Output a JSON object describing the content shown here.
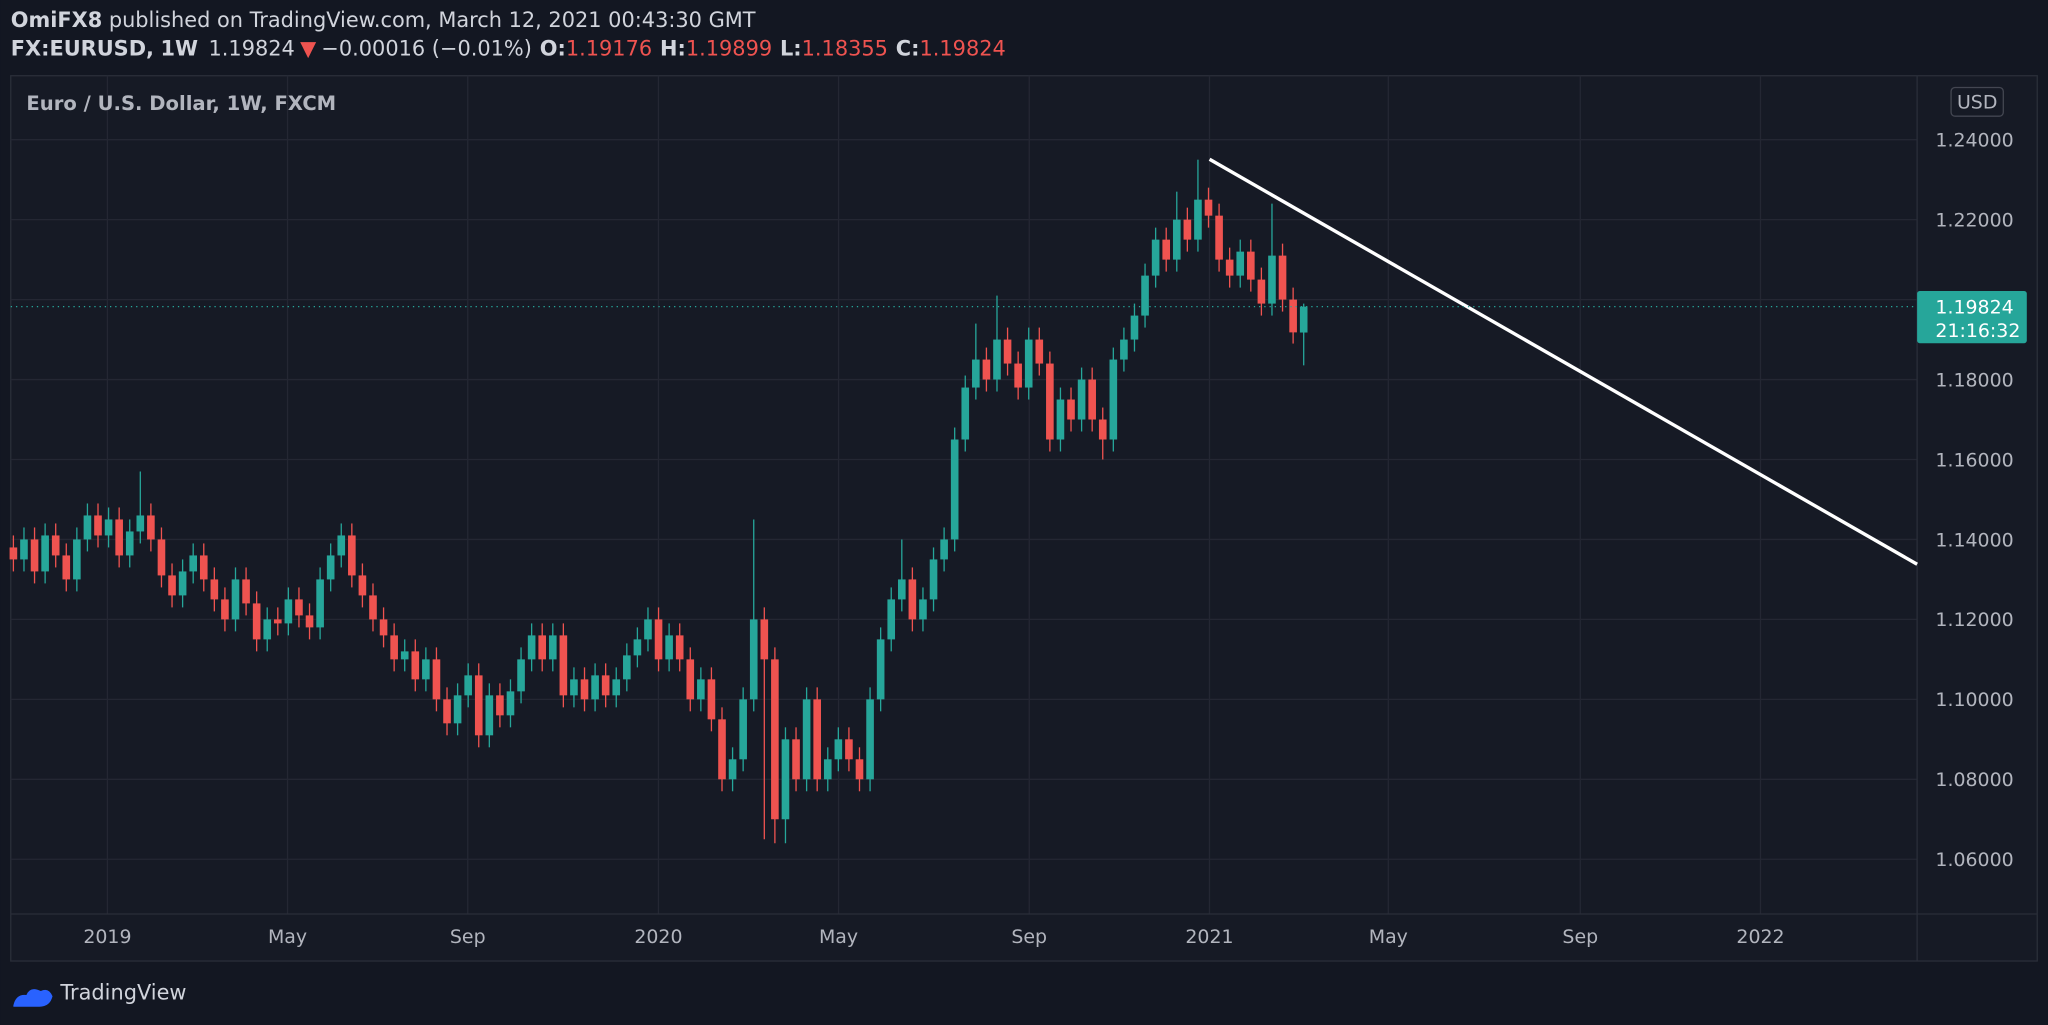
{
  "header": {
    "publisher": "OmiFX8",
    "published": "published on TradingView.com, March 12, 2021 00:43:30 GMT",
    "symbol": "FX:EURUSD,",
    "interval": "1W",
    "change": "−0.00016 (−0.01%)",
    "ohlc_labels": [
      "O:",
      "H:",
      "L:",
      "C:"
    ]
  },
  "chart_data": {
    "type": "candlestick",
    "title": "Euro / U.S. Dollar, 1W, FXCM",
    "currency": "USD",
    "countdown": "21:16:32",
    "up_color": "#26a69a",
    "down_color": "#ef5350",
    "grid": true,
    "xlim": [
      -0.25,
      180
    ],
    "ylim": [
      1.0463,
      1.256
    ],
    "xticks": [
      {
        "value": 8.89,
        "label": "2019"
      },
      {
        "value": 25.92,
        "label": "May"
      },
      {
        "value": 42.96,
        "label": "Sep"
      },
      {
        "value": 60.99,
        "label": "2020"
      },
      {
        "value": 78.02,
        "label": "May"
      },
      {
        "value": 96.05,
        "label": "Sep"
      },
      {
        "value": 113.09,
        "label": "2021"
      },
      {
        "value": 130.0,
        "label": "May"
      },
      {
        "value": 148.15,
        "label": "Sep"
      },
      {
        "value": 165.19,
        "label": "2022"
      }
    ],
    "yticks": [
      {
        "value": 1.06,
        "label": "1.06000"
      },
      {
        "value": 1.08,
        "label": "1.08000"
      },
      {
        "value": 1.1,
        "label": "1.10000"
      },
      {
        "value": 1.12,
        "label": "1.12000"
      },
      {
        "value": 1.14,
        "label": "1.14000"
      },
      {
        "value": 1.16,
        "label": "1.16000"
      },
      {
        "value": 1.18,
        "label": "1.18000"
      },
      {
        "value": 1.2,
        "label": "1.20000"
      },
      {
        "value": 1.22,
        "label": "1.22000"
      },
      {
        "value": 1.24,
        "label": "1.24000"
      }
    ],
    "open": [
      1.138,
      1.135,
      1.14,
      1.132,
      1.141,
      1.136,
      1.13,
      1.14,
      1.146,
      1.141,
      1.145,
      1.136,
      1.142,
      1.146,
      1.14,
      1.131,
      1.126,
      1.132,
      1.136,
      1.13,
      1.125,
      1.12,
      1.13,
      1.124,
      1.115,
      1.12,
      1.119,
      1.125,
      1.121,
      1.118,
      1.13,
      1.136,
      1.141,
      1.131,
      1.126,
      1.12,
      1.116,
      1.11,
      1.112,
      1.105,
      1.11,
      1.1,
      1.094,
      1.101,
      1.106,
      1.091,
      1.101,
      1.096,
      1.102,
      1.11,
      1.116,
      1.11,
      1.116,
      1.101,
      1.105,
      1.1,
      1.106,
      1.101,
      1.105,
      1.111,
      1.115,
      1.12,
      1.11,
      1.116,
      1.11,
      1.1,
      1.105,
      1.095,
      1.08,
      1.085,
      1.1,
      1.12,
      1.11,
      1.07,
      1.09,
      1.08,
      1.1,
      1.08,
      1.085,
      1.09,
      1.085,
      1.08,
      1.1,
      1.115,
      1.125,
      1.13,
      1.12,
      1.125,
      1.135,
      1.14,
      1.165,
      1.178,
      1.185,
      1.18,
      1.19,
      1.184,
      1.178,
      1.19,
      1.184,
      1.165,
      1.175,
      1.17,
      1.18,
      1.17,
      1.165,
      1.185,
      1.19,
      1.196,
      1.206,
      1.215,
      1.21,
      1.22,
      1.215,
      1.225,
      1.221,
      1.21,
      1.206,
      1.212,
      1.205,
      1.199,
      1.211,
      1.2,
      1.19176
    ],
    "high": [
      1.141,
      1.143,
      1.143,
      1.144,
      1.144,
      1.139,
      1.143,
      1.149,
      1.149,
      1.148,
      1.148,
      1.145,
      1.157,
      1.149,
      1.143,
      1.134,
      1.135,
      1.139,
      1.139,
      1.133,
      1.128,
      1.133,
      1.133,
      1.127,
      1.123,
      1.123,
      1.128,
      1.128,
      1.124,
      1.133,
      1.139,
      1.144,
      1.144,
      1.134,
      1.129,
      1.123,
      1.119,
      1.115,
      1.115,
      1.113,
      1.113,
      1.103,
      1.104,
      1.109,
      1.109,
      1.104,
      1.104,
      1.105,
      1.113,
      1.119,
      1.119,
      1.119,
      1.119,
      1.108,
      1.108,
      1.109,
      1.109,
      1.108,
      1.114,
      1.118,
      1.123,
      1.123,
      1.119,
      1.119,
      1.113,
      1.108,
      1.108,
      1.098,
      1.088,
      1.103,
      1.145,
      1.123,
      1.113,
      1.093,
      1.093,
      1.103,
      1.103,
      1.088,
      1.093,
      1.093,
      1.088,
      1.103,
      1.118,
      1.128,
      1.14,
      1.133,
      1.128,
      1.138,
      1.143,
      1.168,
      1.181,
      1.194,
      1.188,
      1.201,
      1.193,
      1.187,
      1.193,
      1.193,
      1.187,
      1.178,
      1.178,
      1.183,
      1.183,
      1.173,
      1.188,
      1.193,
      1.199,
      1.209,
      1.218,
      1.218,
      1.227,
      1.223,
      1.235,
      1.228,
      1.224,
      1.213,
      1.215,
      1.215,
      1.208,
      1.224,
      1.214,
      1.203,
      1.19899
    ],
    "low": [
      1.132,
      1.132,
      1.129,
      1.129,
      1.133,
      1.127,
      1.127,
      1.137,
      1.138,
      1.138,
      1.133,
      1.133,
      1.139,
      1.137,
      1.128,
      1.123,
      1.123,
      1.129,
      1.127,
      1.122,
      1.117,
      1.117,
      1.121,
      1.112,
      1.112,
      1.116,
      1.116,
      1.118,
      1.115,
      1.115,
      1.127,
      1.133,
      1.128,
      1.123,
      1.117,
      1.113,
      1.107,
      1.107,
      1.102,
      1.102,
      1.097,
      1.091,
      1.091,
      1.098,
      1.088,
      1.088,
      1.093,
      1.093,
      1.099,
      1.107,
      1.107,
      1.107,
      1.098,
      1.098,
      1.097,
      1.097,
      1.098,
      1.098,
      1.102,
      1.108,
      1.112,
      1.107,
      1.107,
      1.107,
      1.097,
      1.097,
      1.092,
      1.077,
      1.077,
      1.082,
      1.097,
      1.065,
      1.064,
      1.064,
      1.077,
      1.077,
      1.077,
      1.077,
      1.082,
      1.082,
      1.077,
      1.077,
      1.097,
      1.112,
      1.122,
      1.117,
      1.117,
      1.122,
      1.132,
      1.137,
      1.162,
      1.175,
      1.177,
      1.177,
      1.181,
      1.175,
      1.175,
      1.181,
      1.162,
      1.162,
      1.167,
      1.167,
      1.167,
      1.16,
      1.162,
      1.182,
      1.187,
      1.193,
      1.203,
      1.207,
      1.207,
      1.212,
      1.212,
      1.218,
      1.207,
      1.203,
      1.203,
      1.202,
      1.196,
      1.196,
      1.197,
      1.189,
      1.18355
    ],
    "close": [
      1.135,
      1.14,
      1.132,
      1.141,
      1.136,
      1.13,
      1.14,
      1.146,
      1.141,
      1.145,
      1.136,
      1.142,
      1.146,
      1.14,
      1.131,
      1.126,
      1.132,
      1.136,
      1.13,
      1.125,
      1.12,
      1.13,
      1.124,
      1.115,
      1.12,
      1.119,
      1.125,
      1.121,
      1.118,
      1.13,
      1.136,
      1.141,
      1.131,
      1.126,
      1.12,
      1.116,
      1.11,
      1.112,
      1.105,
      1.11,
      1.1,
      1.094,
      1.101,
      1.106,
      1.091,
      1.101,
      1.096,
      1.102,
      1.11,
      1.116,
      1.11,
      1.116,
      1.101,
      1.105,
      1.1,
      1.106,
      1.101,
      1.105,
      1.111,
      1.115,
      1.12,
      1.11,
      1.116,
      1.11,
      1.1,
      1.105,
      1.095,
      1.08,
      1.085,
      1.1,
      1.12,
      1.11,
      1.07,
      1.09,
      1.08,
      1.1,
      1.08,
      1.085,
      1.09,
      1.085,
      1.08,
      1.1,
      1.115,
      1.125,
      1.13,
      1.12,
      1.125,
      1.135,
      1.14,
      1.165,
      1.178,
      1.185,
      1.18,
      1.19,
      1.184,
      1.178,
      1.19,
      1.184,
      1.165,
      1.175,
      1.17,
      1.18,
      1.17,
      1.165,
      1.185,
      1.19,
      1.196,
      1.206,
      1.215,
      1.21,
      1.22,
      1.215,
      1.225,
      1.221,
      1.21,
      1.206,
      1.212,
      1.205,
      1.199,
      1.211,
      1.2,
      1.1918,
      1.19824
    ],
    "trendline": {
      "x": [
        113.1,
        180
      ],
      "y": [
        1.2351,
        1.1338
      ],
      "color": "#ffffff"
    }
  },
  "footer": {
    "brand": "TradingView"
  }
}
